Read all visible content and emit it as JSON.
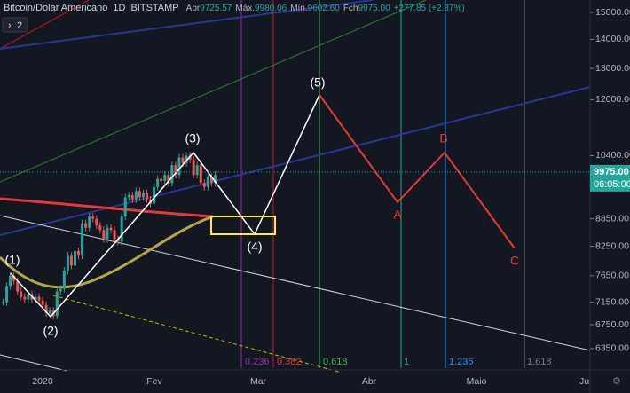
{
  "header": {
    "symbol": "Bitcoin/Dólar Americano",
    "interval": "1D",
    "exchange": "BITSTAMP",
    "open_label": "Abr",
    "open": "9725.57",
    "high_label": "Máx.",
    "high": "9980.06",
    "low_label": "Mín.",
    "low": "9602.60",
    "close_label": "Fch",
    "close": "9975.00",
    "change": "+277.85 (+2.87%)",
    "indicators_button": "2"
  },
  "price_axis": {
    "log": true,
    "ylim": [
      6040,
      15485
    ],
    "ticks": [
      {
        "value": 15000,
        "label": "15000.00"
      },
      {
        "value": 14000,
        "label": "14000.00"
      },
      {
        "value": 13000,
        "label": "13000.00"
      },
      {
        "value": 12000,
        "label": "12000.00"
      },
      {
        "value": 10400,
        "label": "10400.00"
      },
      {
        "value": 8850,
        "label": "8850.00"
      },
      {
        "value": 8250,
        "label": "8250.00"
      },
      {
        "value": 7650,
        "label": "7650.00"
      },
      {
        "value": 7150,
        "label": "7150.00"
      },
      {
        "value": 6750,
        "label": "6750.00"
      },
      {
        "value": 6350,
        "label": "6350.00"
      }
    ],
    "last_price": {
      "value": 9975,
      "label": "9975.00"
    },
    "countdown": "06:05:00"
  },
  "time_axis": {
    "labels": [
      "2020",
      "Fev",
      "Mar",
      "Abr",
      "Maio",
      "Ju"
    ]
  },
  "waves": [
    "(1)",
    "(2)",
    "(3)",
    "(4)",
    "(5)",
    "A",
    "B",
    "C"
  ],
  "fib_labels": [
    "0.236",
    "0.382",
    "0.618",
    "1",
    "1.236",
    "1.618"
  ],
  "candles": {
    "closes": [
      7150,
      7450,
      7650,
      7550,
      7350,
      7250,
      7200,
      7300,
      7200,
      7250,
      7180,
      7100,
      6950,
      7000,
      6900,
      7350,
      7400,
      7750,
      8050,
      7850,
      8150,
      8050,
      8750,
      8650,
      8900,
      8850,
      8700,
      8600,
      8400,
      8650,
      8600,
      8400,
      8350,
      8900,
      9350,
      9400,
      9300,
      9500,
      9350,
      9450,
      9300,
      9200,
      9600,
      9800,
      9750,
      9900,
      9700,
      10150,
      9900,
      10350,
      10200,
      10400,
      10300,
      9900,
      10150,
      9700,
      9600,
      9850,
      9700,
      9900
    ]
  }
}
